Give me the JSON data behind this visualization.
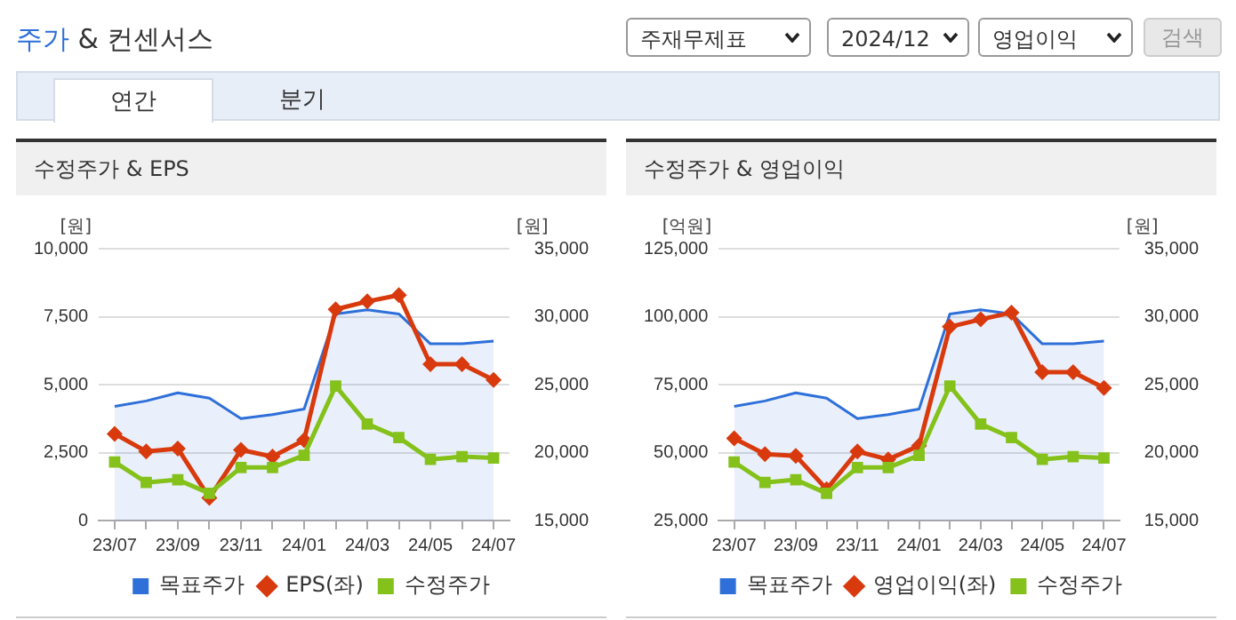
{
  "chart_data": [
    {
      "type": "other",
      "title": "주가 & 컨센서스",
      "annotations": [
        "주재무제표",
        "2024/12",
        "영업이익",
        "검색",
        "연간",
        "분기"
      ]
    },
    {
      "type": "line",
      "title": "수정주가 & EPS",
      "ylabel": "[원]",
      "y2label": "[원]",
      "categories": [
        "23/07",
        null,
        "23/09",
        null,
        "23/11",
        null,
        "24/01",
        null,
        "24/03",
        null,
        "24/05",
        null,
        "24/07"
      ],
      "series": [
        {
          "name": "목표주가",
          "type": "area",
          "axis": "y2",
          "color": "#2e6fd9",
          "marker": "none",
          "values": [
            23400,
            23800,
            24400,
            24000,
            22500,
            22800,
            23200,
            30200,
            30500,
            30200,
            28000,
            28000,
            28200
          ]
        },
        {
          "name": "EPS(좌)",
          "type": "line",
          "color": "#d83a0e",
          "marker": "diamond",
          "values": [
            3190,
            2540,
            2650,
            830,
            2600,
            2350,
            2960,
            7770,
            8060,
            8290,
            5750,
            5750,
            5170
          ]
        },
        {
          "name": "수정주가",
          "type": "line",
          "axis": "y2",
          "color": "#84c11a",
          "marker": "square",
          "values": [
            19300,
            17800,
            18000,
            17000,
            18900,
            18900,
            19800,
            24900,
            22100,
            21100,
            19500,
            19700,
            19600
          ]
        }
      ],
      "ylim": [
        0,
        10000
      ],
      "yticks": [
        0,
        {
          "value": 2500,
          "label": "2,500"
        },
        {
          "value": 5000,
          "label": "5,000"
        },
        {
          "value": 7500,
          "label": "7,500"
        },
        {
          "value": 10000,
          "label": "10,000"
        }
      ],
      "y2lim": [
        15000,
        35000
      ],
      "y2ticks": [
        {
          "value": 15000,
          "label": "15,000"
        },
        {
          "value": 20000,
          "label": "20,000"
        },
        {
          "value": 25000,
          "label": "25,000"
        },
        {
          "value": 30000,
          "label": "30,000"
        },
        {
          "value": 35000,
          "label": "35,000"
        }
      ],
      "grid": "y",
      "legend": "bottom"
    },
    {
      "type": "line",
      "title": "수정주가 & 영업이익",
      "ylabel": "[억원]",
      "y2label": "[원]",
      "categories": [
        "23/07",
        null,
        "23/09",
        null,
        "23/11",
        null,
        "24/01",
        null,
        "24/03",
        null,
        "24/05",
        null,
        "24/07"
      ],
      "series": [
        {
          "name": "목표주가",
          "type": "area",
          "axis": "y2",
          "color": "#2e6fd9",
          "marker": "none",
          "values": [
            23400,
            23800,
            24400,
            24000,
            22500,
            22800,
            23200,
            30200,
            30500,
            30200,
            28000,
            28000,
            28200
          ]
        },
        {
          "name": "영업이익(좌)",
          "type": "line",
          "color": "#d83a0e",
          "marker": "diamond",
          "values": [
            55200,
            49400,
            48800,
            36500,
            50400,
            47500,
            52500,
            96300,
            99000,
            101500,
            79600,
            79600,
            73800
          ]
        },
        {
          "name": "수정주가",
          "type": "line",
          "axis": "y2",
          "color": "#84c11a",
          "marker": "square",
          "values": [
            19300,
            17800,
            18000,
            17000,
            18900,
            18900,
            19800,
            24900,
            22100,
            21100,
            19500,
            19700,
            19600
          ]
        }
      ],
      "ylim": [
        25000,
        125000
      ],
      "yticks": [
        {
          "value": 25000,
          "label": "25,000"
        },
        {
          "value": 50000,
          "label": "50,000"
        },
        {
          "value": 75000,
          "label": "75,000"
        },
        {
          "value": 100000,
          "label": "100,000"
        },
        {
          "value": 125000,
          "label": "125,000"
        }
      ],
      "y2lim": [
        15000,
        35000
      ],
      "y2ticks": [
        {
          "value": 15000,
          "label": "15,000"
        },
        {
          "value": 20000,
          "label": "20,000"
        },
        {
          "value": 25000,
          "label": "25,000"
        },
        {
          "value": 30000,
          "label": "30,000"
        },
        {
          "value": 35000,
          "label": "35,000"
        }
      ],
      "grid": "y",
      "legend": "bottom"
    }
  ]
}
